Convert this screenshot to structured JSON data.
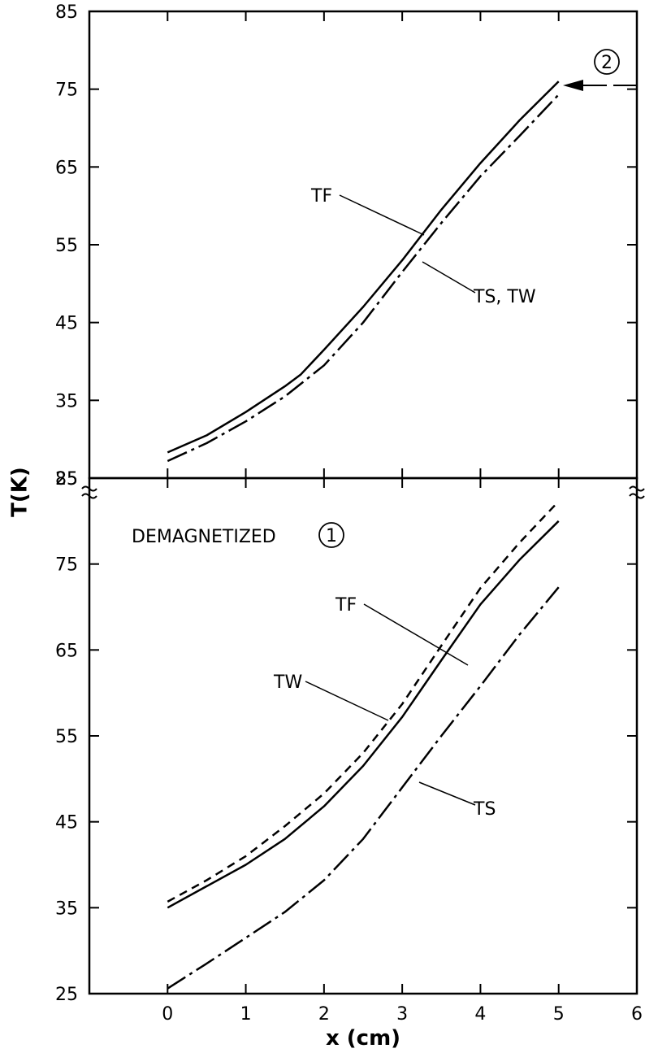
{
  "chart_data": [
    {
      "type": "line",
      "panel": "top",
      "xlabel": "x (cm)",
      "ylabel": "T(K)",
      "xlim": [
        -1,
        6
      ],
      "ylim": [
        25,
        85
      ],
      "yticks": [
        25,
        35,
        45,
        55,
        65,
        75,
        85
      ],
      "grid": false,
      "series": [
        {
          "name": "TF",
          "style": "solid",
          "x": [
            0,
            0.5,
            1,
            1.5,
            1.7,
            2,
            2.5,
            3,
            3.5,
            4,
            4.5,
            5
          ],
          "y": [
            28.3,
            30.5,
            33.5,
            36.8,
            38.3,
            41.5,
            47,
            53,
            59.5,
            65.5,
            71,
            76
          ]
        },
        {
          "name": "TS, TW",
          "style": "dashdot",
          "x": [
            0,
            0.5,
            1,
            1.5,
            2,
            2.5,
            3,
            3.5,
            4,
            4.5,
            5
          ],
          "y": [
            27.2,
            29.5,
            32.3,
            35.5,
            39.5,
            45,
            51.5,
            57.8,
            63.8,
            69,
            74.3
          ]
        }
      ],
      "annotations": [
        {
          "text": "TF",
          "x": 2.0,
          "y": 65
        },
        {
          "text": "TS, TW",
          "x": 4.85,
          "y": 48.5
        },
        {
          "text": "2",
          "x": 5.55,
          "y": 78.5
        }
      ]
    },
    {
      "type": "line",
      "panel": "bottom",
      "xlabel": "x (cm)",
      "ylabel": "T(K)",
      "xlim": [
        -1,
        6
      ],
      "ylim": [
        25,
        85
      ],
      "xticks": [
        0,
        1,
        2,
        3,
        4,
        5,
        6
      ],
      "yticks": [
        25,
        35,
        45,
        55,
        65,
        75,
        85
      ],
      "grid": false,
      "series": [
        {
          "name": "TF",
          "style": "dashed",
          "x": [
            0,
            0.5,
            1,
            1.5,
            2,
            2.5,
            3,
            3.5,
            4,
            4.5,
            5
          ],
          "y": [
            35.7,
            38.2,
            41,
            44.5,
            48.3,
            53,
            58.7,
            65.5,
            72.2,
            77.5,
            82.3
          ]
        },
        {
          "name": "TW",
          "style": "solid",
          "x": [
            0,
            0.5,
            1,
            1.5,
            2,
            2.5,
            3,
            3.5,
            4,
            4.5,
            5
          ],
          "y": [
            35,
            37.5,
            40,
            43,
            46.8,
            51.5,
            57.2,
            63.8,
            70.3,
            75.5,
            80
          ]
        },
        {
          "name": "TS",
          "style": "dashdot",
          "x": [
            0,
            0.5,
            1,
            1.5,
            2,
            2.5,
            3,
            3.5,
            4,
            4.5,
            5
          ],
          "y": [
            25.6,
            28.5,
            31.5,
            34.5,
            38.2,
            43,
            49,
            55,
            60.8,
            66.8,
            72.3
          ]
        }
      ],
      "annotations": [
        {
          "text": "DEMAGNETIZED",
          "x": -0.4,
          "y": 81
        },
        {
          "text": "1",
          "x": 2.27,
          "y": 81
        },
        {
          "text": "TF",
          "x": 3.85,
          "y": 71.8
        },
        {
          "text": "TW",
          "x": 3.55,
          "y": 60.8
        },
        {
          "text": "TS",
          "x": 4.9,
          "y": 49
        }
      ]
    }
  ],
  "ticks_top_y": [
    "25",
    "35",
    "45",
    "55",
    "65",
    "75",
    "85"
  ],
  "ticks_bottom_y": [
    "25",
    "35",
    "45",
    "55",
    "65",
    "75",
    "85"
  ],
  "ticks_x": [
    "0",
    "1",
    "2",
    "3",
    "4",
    "5",
    "6"
  ],
  "labels": {
    "ylabel": "T(K)",
    "xlabel": "x (cm)",
    "top_tf": "TF",
    "top_ts_tw": "TS, TW",
    "circle_2": "2",
    "demag": "DEMAGNETIZED",
    "circle_1": "1",
    "bottom_tf": "TF",
    "bottom_tw": "TW",
    "bottom_ts": "TS"
  }
}
